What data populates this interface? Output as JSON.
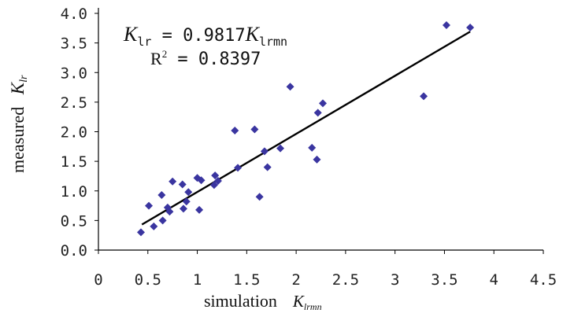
{
  "chart_data": {
    "type": "scatter",
    "xlabel": "simulation",
    "xlabel_symbol": "K",
    "xlabel_subscript": "lrmn",
    "ylabel": "measured",
    "ylabel_symbol": "K",
    "ylabel_subscript": "lr",
    "xlim": [
      0,
      4.5
    ],
    "ylim": [
      0,
      4.0
    ],
    "xticks": [
      "0",
      "0.5",
      "1",
      "1.5",
      "2",
      "2.5",
      "3",
      "3.5",
      "4",
      "4.5"
    ],
    "yticks": [
      "0.0",
      "0.5",
      "1.0",
      "1.5",
      "2.0",
      "2.5",
      "3.0",
      "3.5",
      "4.0"
    ],
    "grid": false,
    "marker": "diamond",
    "marker_color": "#3a35a0",
    "line_color": "#000000",
    "points": [
      {
        "x": 0.43,
        "y": 0.3
      },
      {
        "x": 0.51,
        "y": 0.75
      },
      {
        "x": 0.56,
        "y": 0.4
      },
      {
        "x": 0.64,
        "y": 0.93
      },
      {
        "x": 0.65,
        "y": 0.5
      },
      {
        "x": 0.7,
        "y": 0.72
      },
      {
        "x": 0.72,
        "y": 0.65
      },
      {
        "x": 0.75,
        "y": 1.16
      },
      {
        "x": 0.85,
        "y": 1.11
      },
      {
        "x": 0.86,
        "y": 0.7
      },
      {
        "x": 0.89,
        "y": 0.82
      },
      {
        "x": 0.91,
        "y": 0.98
      },
      {
        "x": 1.0,
        "y": 1.22
      },
      {
        "x": 1.02,
        "y": 0.68
      },
      {
        "x": 1.04,
        "y": 1.18
      },
      {
        "x": 1.17,
        "y": 1.1
      },
      {
        "x": 1.18,
        "y": 1.26
      },
      {
        "x": 1.21,
        "y": 1.17
      },
      {
        "x": 1.38,
        "y": 2.02
      },
      {
        "x": 1.41,
        "y": 1.39
      },
      {
        "x": 1.58,
        "y": 2.04
      },
      {
        "x": 1.63,
        "y": 0.9
      },
      {
        "x": 1.68,
        "y": 1.67
      },
      {
        "x": 1.71,
        "y": 1.4
      },
      {
        "x": 1.84,
        "y": 1.72
      },
      {
        "x": 1.94,
        "y": 2.76
      },
      {
        "x": 2.16,
        "y": 1.73
      },
      {
        "x": 2.21,
        "y": 1.53
      },
      {
        "x": 2.22,
        "y": 2.32
      },
      {
        "x": 2.27,
        "y": 2.48
      },
      {
        "x": 3.29,
        "y": 2.6
      },
      {
        "x": 3.52,
        "y": 3.8
      },
      {
        "x": 3.76,
        "y": 3.76
      }
    ],
    "trendline": {
      "slope": 0.9817,
      "intercept": 0,
      "x_start": 0.44,
      "x_end": 3.76
    },
    "equation_symbol": "K",
    "equation_lhs_subscript": "lr",
    "equation_mid": " = 0.9817",
    "equation_rhs_subscript": "lrmn",
    "r2_label": "R",
    "r2_power": "2",
    "r2_value": " = 0.8397"
  }
}
